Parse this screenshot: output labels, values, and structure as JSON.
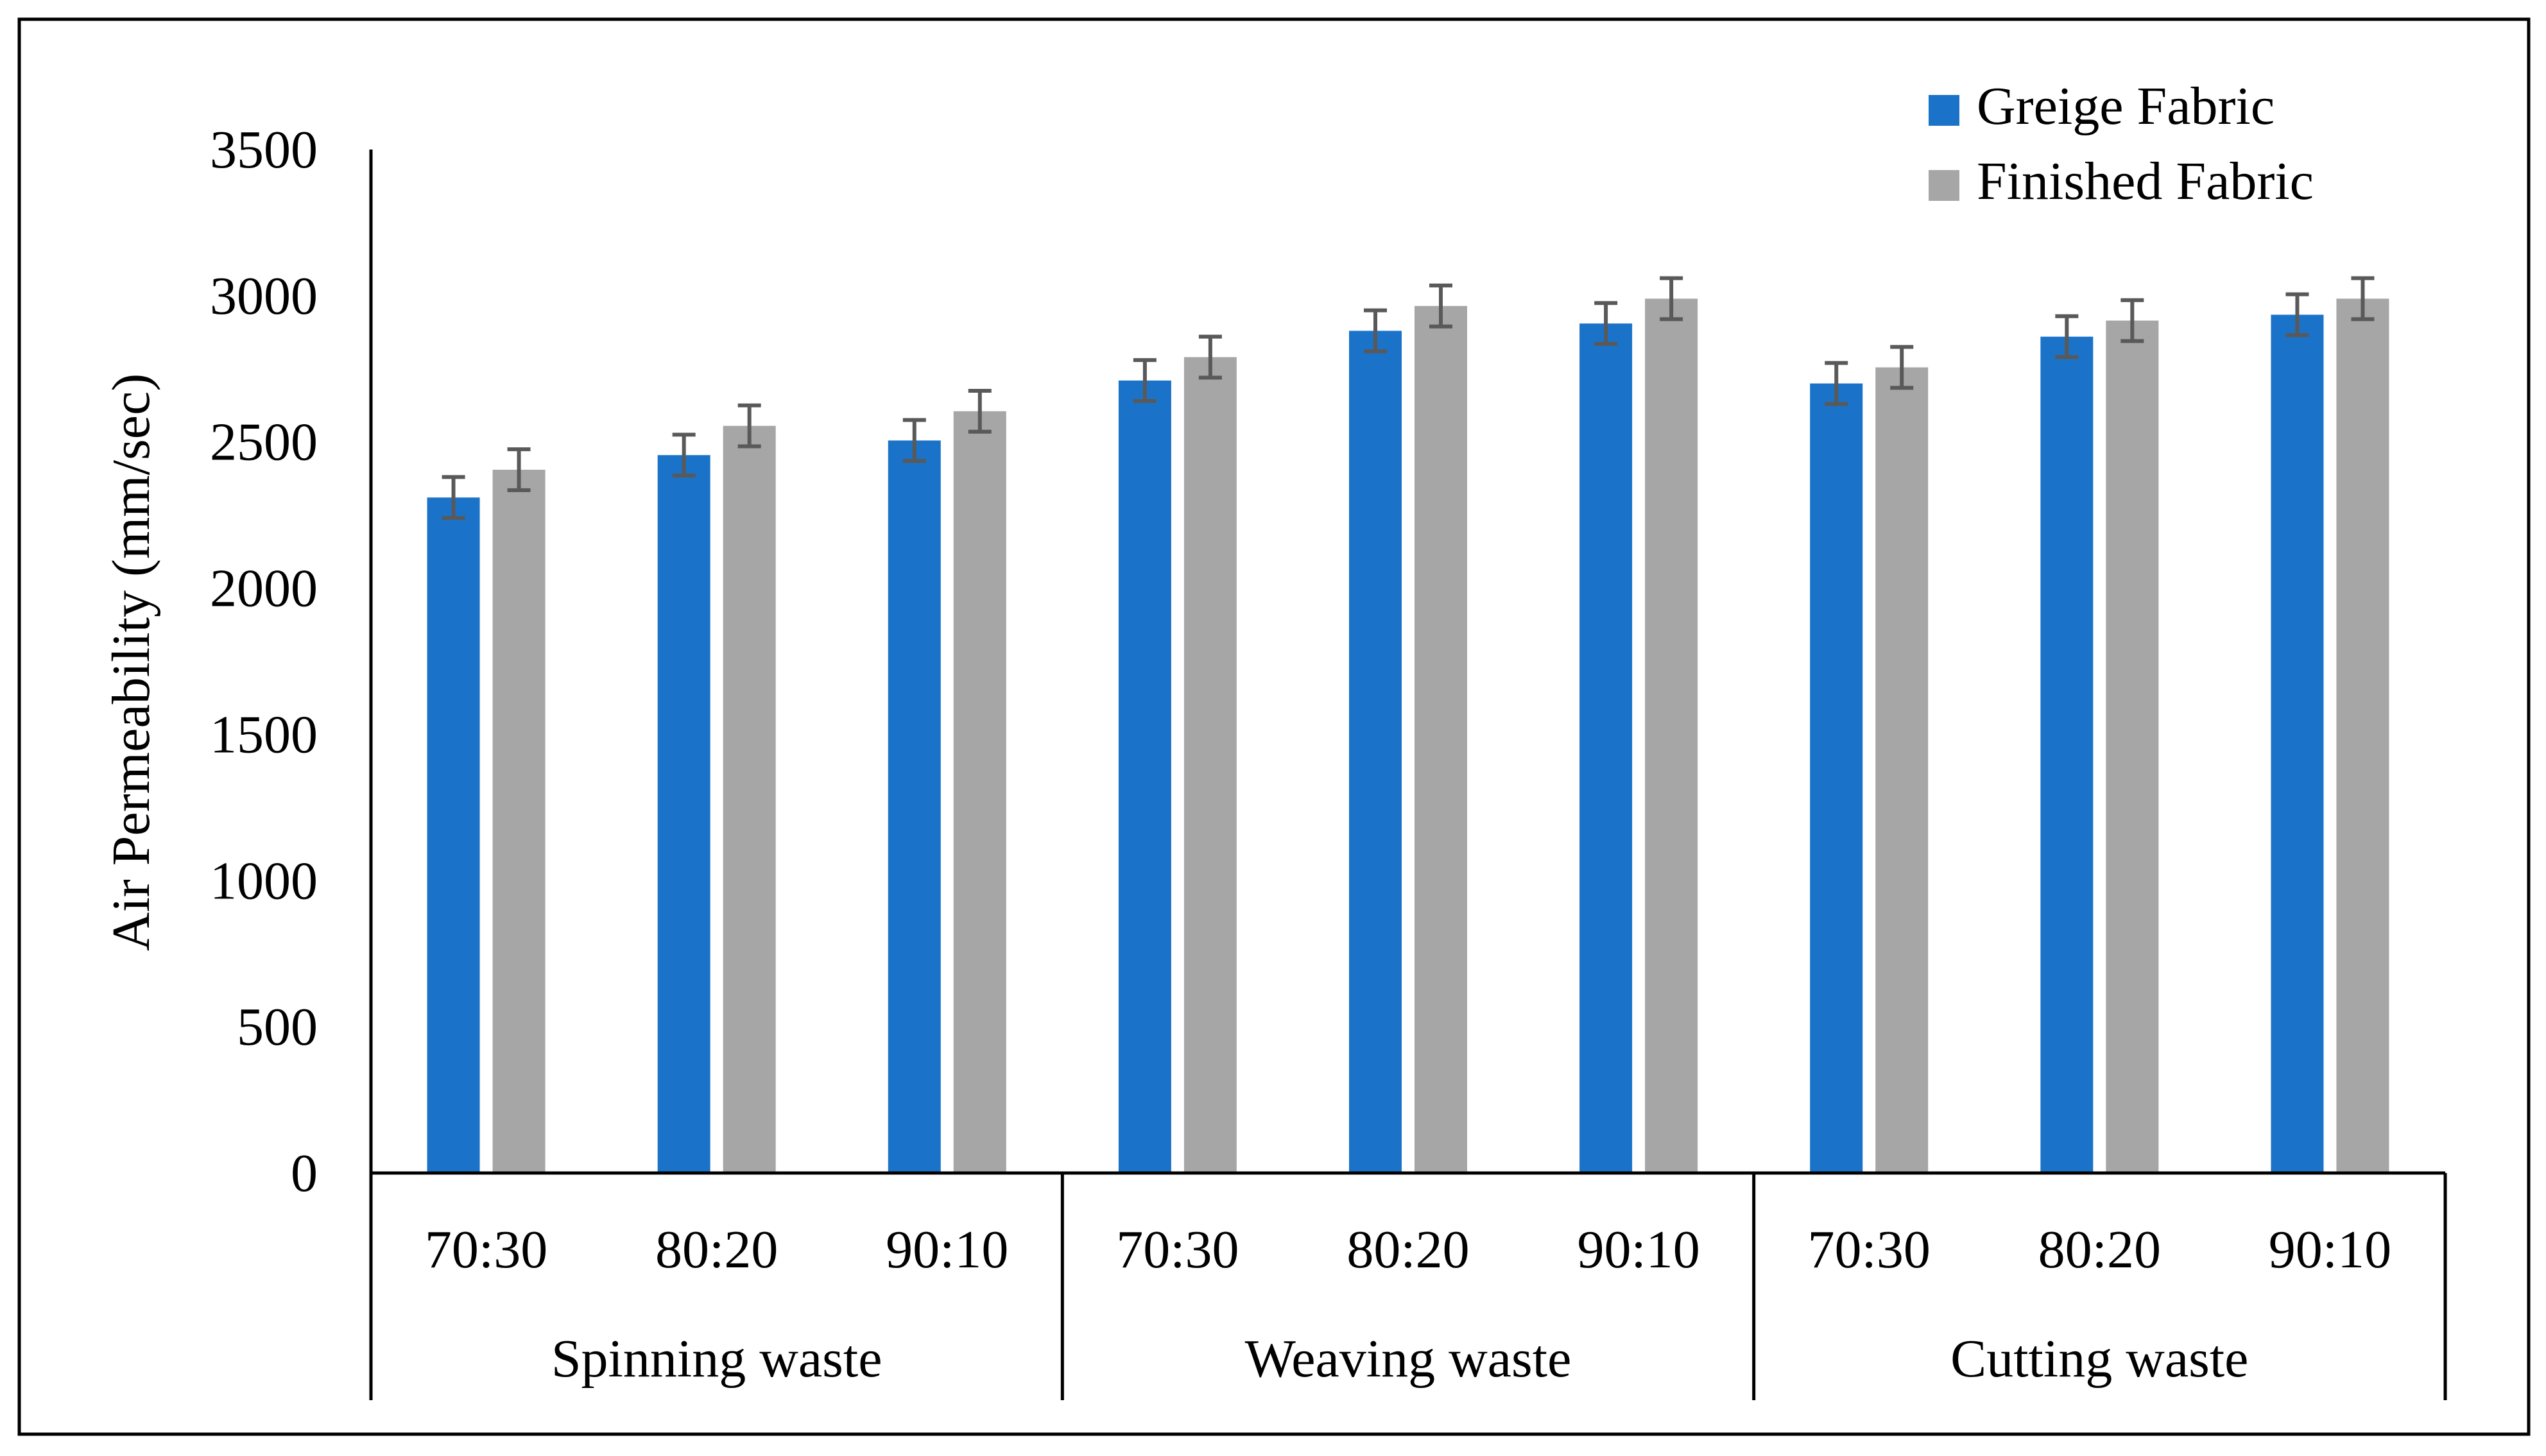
{
  "chart_data": {
    "type": "bar",
    "title": "",
    "xlabel": "",
    "ylabel": "Air Permeability (mm/sec)",
    "ylim": [
      0,
      3500
    ],
    "yticks": [
      0,
      500,
      1000,
      1500,
      2000,
      2500,
      3000,
      3500
    ],
    "groups": [
      {
        "label": "Spinning waste",
        "categories": [
          "70:30",
          "80:20",
          "90:10"
        ]
      },
      {
        "label": "Weaving waste",
        "categories": [
          "70:30",
          "80:20",
          "90:10"
        ]
      },
      {
        "label": "Cutting waste",
        "categories": [
          "70:30",
          "80:20",
          "90:10"
        ]
      }
    ],
    "series": [
      {
        "name": "Greige Fabric",
        "color": "#1a73c8",
        "values": [
          2310,
          2455,
          2505,
          2710,
          2880,
          2905,
          2700,
          2860,
          2935
        ],
        "errors": [
          70,
          70,
          70,
          70,
          70,
          70,
          70,
          70,
          70
        ]
      },
      {
        "name": "Finished Fabric",
        "color": "#a6a6a6",
        "values": [
          2405,
          2555,
          2605,
          2790,
          2965,
          2990,
          2755,
          2915,
          2990
        ],
        "errors": [
          70,
          70,
          70,
          70,
          70,
          70,
          70,
          70,
          70
        ]
      }
    ],
    "error_bar_color": "#595959",
    "legend_position": "top-right",
    "grid": false
  }
}
